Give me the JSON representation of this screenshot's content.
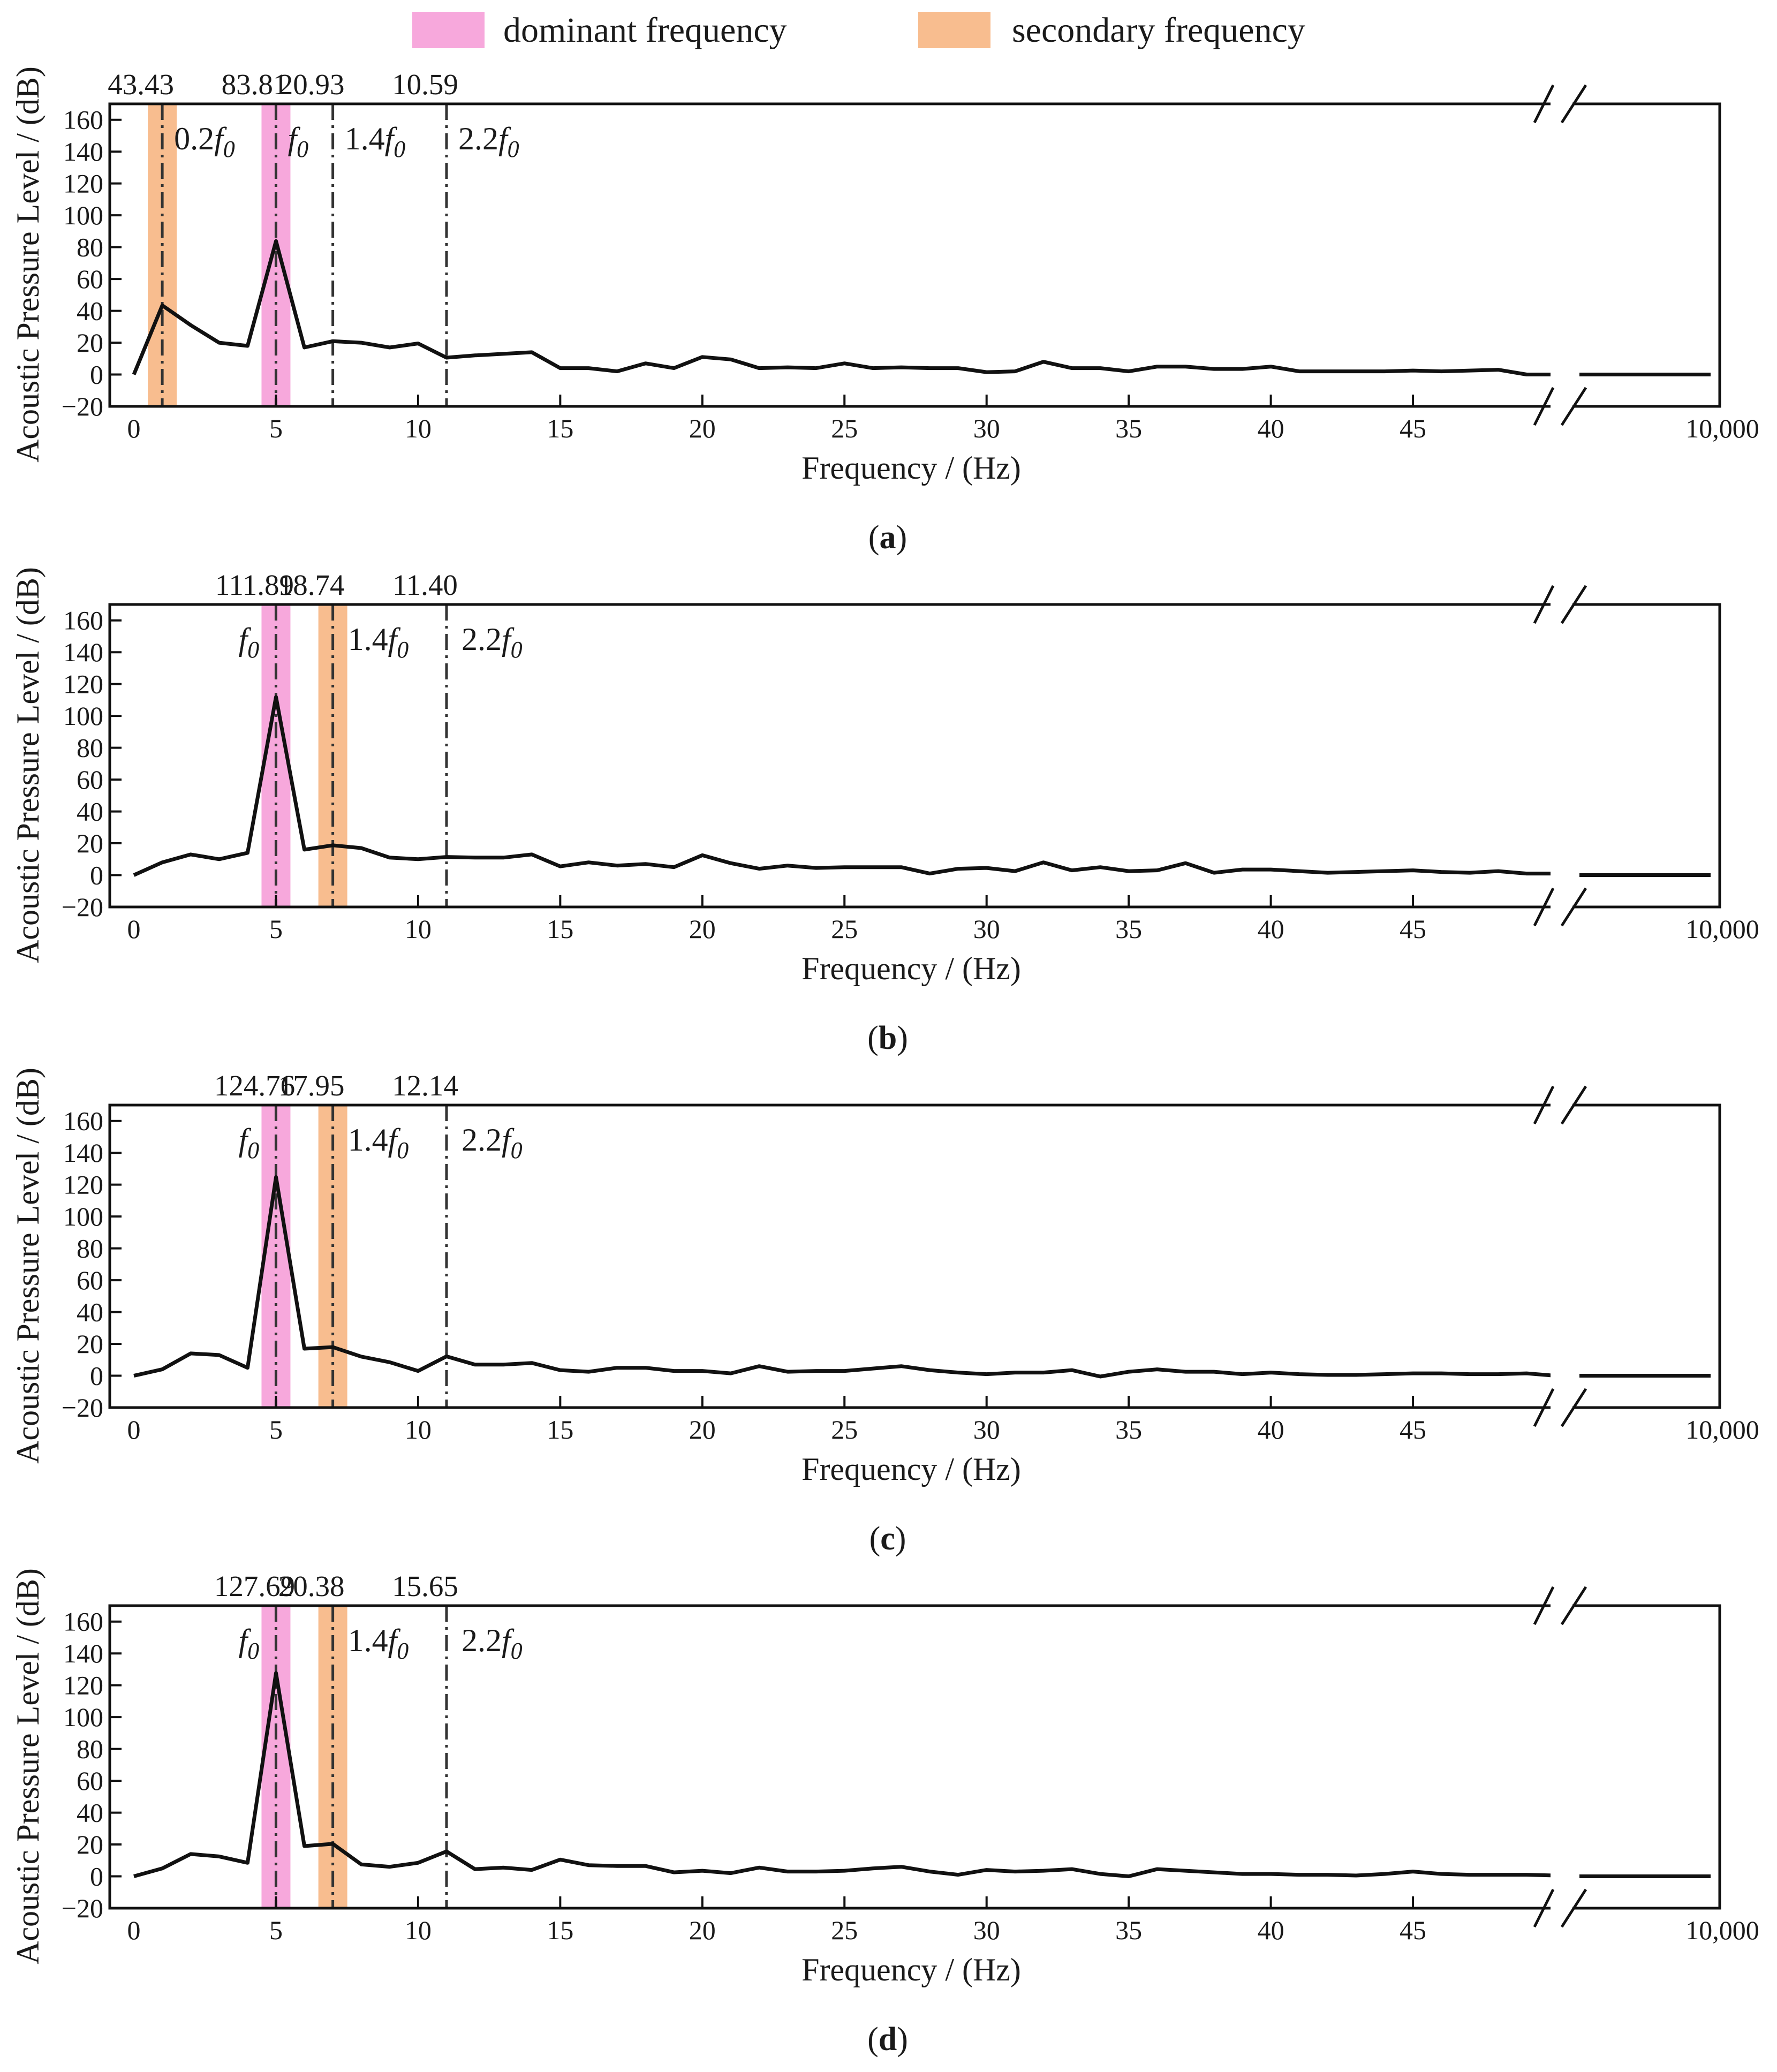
{
  "legend": {
    "dominant": {
      "label": "dominant frequency",
      "color": "#f7a8dc"
    },
    "secondary": {
      "label": "secondary frequency",
      "color": "#f8bd8f"
    }
  },
  "chart_data": [
    {
      "type": "line",
      "panel_label": "(a)",
      "panel_letter": "a",
      "xlabel": "Frequency / (Hz)",
      "ylabel": "Acoustic Pressure Level / (dB)",
      "ylim": [
        -20,
        170
      ],
      "xlim": [
        0,
        50
      ],
      "yticks": [
        "−20",
        "0",
        "20",
        "40",
        "60",
        "80",
        "100",
        "120",
        "140",
        "160"
      ],
      "xticks": [
        "0",
        "5",
        "10",
        "15",
        "20",
        "25",
        "30",
        "35",
        "40",
        "45"
      ],
      "x_break_label": "10,000",
      "x": [
        0,
        1,
        2,
        3,
        4,
        5,
        6,
        7,
        8,
        9,
        10,
        11,
        12,
        13,
        14,
        15,
        16,
        17,
        18,
        19,
        20,
        21,
        22,
        23,
        24,
        25,
        26,
        27,
        28,
        29,
        30,
        31,
        32,
        33,
        34,
        35,
        36,
        37,
        38,
        39,
        40,
        41,
        42,
        43,
        44,
        45,
        46,
        47,
        48,
        49,
        50
      ],
      "values": [
        0,
        43.43,
        31,
        20,
        18,
        83.81,
        17,
        20.93,
        20,
        17,
        19.5,
        10.59,
        12,
        13,
        14,
        4,
        4,
        2,
        7,
        4,
        11,
        9.5,
        4,
        4.5,
        4,
        7,
        4,
        4.5,
        4,
        4,
        1.5,
        2,
        8,
        4,
        4,
        2,
        5,
        5,
        3.5,
        3.5,
        5,
        2,
        2,
        2,
        2,
        2.5,
        2,
        2.5,
        3,
        0,
        0
      ],
      "break_level": 0,
      "markers": [
        {
          "x": 1.0,
          "label": "43.43",
          "multiple": "0.2",
          "highlight": "secondary"
        },
        {
          "x": 5.0,
          "label": "83.81",
          "multiple": "",
          "highlight": "dominant"
        },
        {
          "x": 7.0,
          "label": "20.93",
          "multiple": "1.4",
          "highlight": ""
        },
        {
          "x": 11.0,
          "label": "10.59",
          "multiple": "2.2",
          "highlight": ""
        }
      ]
    },
    {
      "type": "line",
      "panel_label": "(b)",
      "panel_letter": "b",
      "xlabel": "Frequency / (Hz)",
      "ylabel": "Acoustic Pressure Level / (dB)",
      "ylim": [
        -20,
        170
      ],
      "xlim": [
        0,
        50
      ],
      "yticks": [
        "−20",
        "0",
        "20",
        "40",
        "60",
        "80",
        "100",
        "120",
        "140",
        "160"
      ],
      "xticks": [
        "0",
        "5",
        "10",
        "15",
        "20",
        "25",
        "30",
        "35",
        "40",
        "45"
      ],
      "x_break_label": "10,000",
      "x": [
        0,
        1,
        2,
        3,
        4,
        5,
        6,
        7,
        8,
        9,
        10,
        11,
        12,
        13,
        14,
        15,
        16,
        17,
        18,
        19,
        20,
        21,
        22,
        23,
        24,
        25,
        26,
        27,
        28,
        29,
        30,
        31,
        32,
        33,
        34,
        35,
        36,
        37,
        38,
        39,
        40,
        41,
        42,
        43,
        44,
        45,
        46,
        47,
        48,
        49,
        50
      ],
      "values": [
        0,
        8,
        13,
        10,
        14,
        111.89,
        16,
        18.74,
        17,
        11,
        10,
        11.4,
        11,
        11,
        13,
        5.5,
        8,
        6,
        7,
        5,
        12.5,
        7.5,
        4,
        6,
        4.5,
        5,
        5,
        5,
        1,
        4,
        4.5,
        2.5,
        8,
        3,
        5,
        2.5,
        3,
        7.5,
        1.5,
        3.5,
        3.5,
        2.5,
        1.5,
        2,
        2.5,
        3,
        2,
        1.5,
        2.5,
        1,
        1
      ],
      "break_level": 0,
      "markers": [
        {
          "x": 5.0,
          "label": "111.89",
          "multiple": "",
          "highlight": "dominant"
        },
        {
          "x": 7.0,
          "label": "18.74",
          "multiple": "1.4",
          "highlight": "secondary"
        },
        {
          "x": 11.0,
          "label": "11.40",
          "multiple": "2.2",
          "highlight": ""
        }
      ]
    },
    {
      "type": "line",
      "panel_label": "(c)",
      "panel_letter": "c",
      "xlabel": "Frequency / (Hz)",
      "ylabel": "Acoustic Pressure Level / (dB)",
      "ylim": [
        -20,
        170
      ],
      "xlim": [
        0,
        50
      ],
      "yticks": [
        "−20",
        "0",
        "20",
        "40",
        "60",
        "80",
        "100",
        "120",
        "140",
        "160"
      ],
      "xticks": [
        "0",
        "5",
        "10",
        "15",
        "20",
        "25",
        "30",
        "35",
        "40",
        "45"
      ],
      "x_break_label": "10,000",
      "x": [
        0,
        1,
        2,
        3,
        4,
        5,
        6,
        7,
        8,
        9,
        10,
        11,
        12,
        13,
        14,
        15,
        16,
        17,
        18,
        19,
        20,
        21,
        22,
        23,
        24,
        25,
        26,
        27,
        28,
        29,
        30,
        31,
        32,
        33,
        34,
        35,
        36,
        37,
        38,
        39,
        40,
        41,
        42,
        43,
        44,
        45,
        46,
        47,
        48,
        49,
        50
      ],
      "values": [
        0,
        4,
        14,
        13,
        5,
        124.76,
        17,
        17.95,
        12,
        8.5,
        3,
        12.14,
        7,
        7,
        8,
        3.5,
        2.5,
        5,
        5,
        3,
        3,
        1.5,
        6,
        2.5,
        3,
        3,
        4.5,
        6,
        3.5,
        2,
        1,
        2,
        2,
        3.5,
        -0.5,
        2.5,
        4,
        2.5,
        2.5,
        1,
        2,
        1,
        0.5,
        0.5,
        1,
        1.5,
        1.5,
        1,
        1,
        1.5,
        0
      ],
      "break_level": 0,
      "markers": [
        {
          "x": 5.0,
          "label": "124.76",
          "multiple": "",
          "highlight": "dominant"
        },
        {
          "x": 7.0,
          "label": "17.95",
          "multiple": "1.4",
          "highlight": "secondary"
        },
        {
          "x": 11.0,
          "label": "12.14",
          "multiple": "2.2",
          "highlight": ""
        }
      ]
    },
    {
      "type": "line",
      "panel_label": "(d)",
      "panel_letter": "d",
      "xlabel": "Frequency / (Hz)",
      "ylabel": "Acoustic Pressure Level / (dB)",
      "ylim": [
        -20,
        170
      ],
      "xlim": [
        0,
        50
      ],
      "yticks": [
        "−20",
        "0",
        "20",
        "40",
        "60",
        "80",
        "100",
        "120",
        "140",
        "160"
      ],
      "xticks": [
        "0",
        "5",
        "10",
        "15",
        "20",
        "25",
        "30",
        "35",
        "40",
        "45"
      ],
      "x_break_label": "10,000",
      "x": [
        0,
        1,
        2,
        3,
        4,
        5,
        6,
        7,
        8,
        9,
        10,
        11,
        12,
        13,
        14,
        15,
        16,
        17,
        18,
        19,
        20,
        21,
        22,
        23,
        24,
        25,
        26,
        27,
        28,
        29,
        30,
        31,
        32,
        33,
        34,
        35,
        36,
        37,
        38,
        39,
        40,
        41,
        42,
        43,
        44,
        45,
        46,
        47,
        48,
        49,
        50
      ],
      "values": [
        0,
        5,
        14,
        12.5,
        8.5,
        127.69,
        19,
        20.38,
        7.5,
        6,
        8.5,
        15.65,
        4.5,
        5.5,
        4,
        10.5,
        7,
        6.5,
        6.5,
        2.5,
        3.5,
        2,
        5.5,
        3,
        3,
        3.5,
        5,
        6,
        3,
        1,
        4,
        3,
        3.5,
        4.5,
        1.5,
        0,
        4.5,
        3.5,
        2.5,
        1.5,
        1.5,
        1,
        1,
        0.5,
        1.5,
        3,
        1.5,
        1,
        1,
        1,
        0.5
      ],
      "break_level": 0,
      "markers": [
        {
          "x": 5.0,
          "label": "127.69",
          "multiple": "",
          "highlight": "dominant"
        },
        {
          "x": 7.0,
          "label": "20.38",
          "multiple": "1.4",
          "highlight": "secondary"
        },
        {
          "x": 11.0,
          "label": "15.65",
          "multiple": "2.2",
          "highlight": ""
        }
      ]
    }
  ]
}
